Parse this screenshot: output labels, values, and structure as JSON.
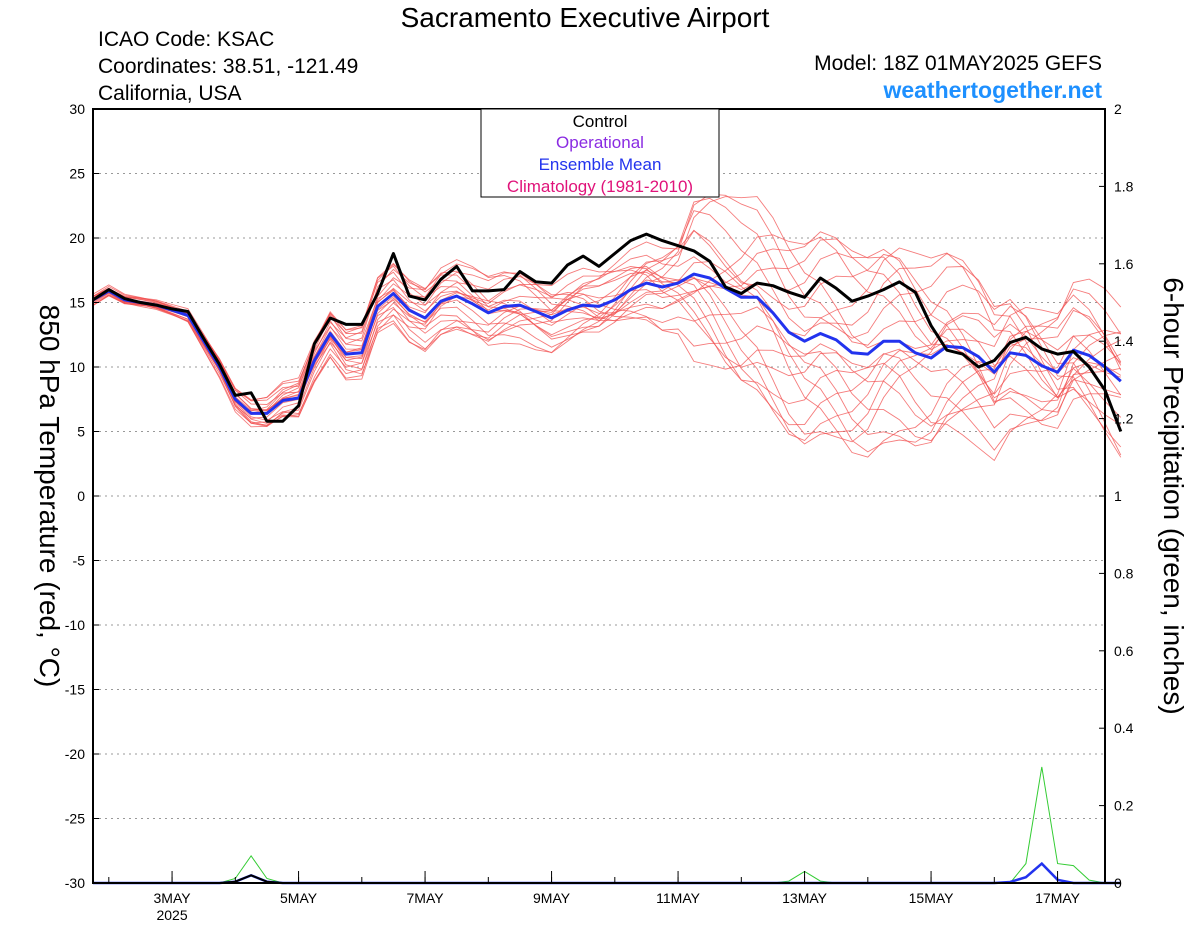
{
  "header": {
    "title": "Sacramento Executive Airport",
    "icao": "ICAO Code: KSAC",
    "coords": "Coordinates: 38.51, -121.49",
    "region": "California, USA",
    "model": "Model: 18Z 01MAY2025 GEFS",
    "site": "weathertogether.net"
  },
  "colors": {
    "control": "#000000",
    "operational": "#8a2be2",
    "mean": "#2233ee",
    "climatology": "#e0137a",
    "members": "#f25050",
    "precip": "#33cc33",
    "grid": "#999999"
  },
  "chart_data": {
    "type": "line",
    "ylabel_left": "850 hPa Temperature (red, °C)",
    "ylabel_right": "6-hour Precipitation (green, inches)",
    "ylim_left": [
      -30,
      30
    ],
    "ylim_right": [
      0,
      2
    ],
    "yticks_left": [
      30,
      25,
      20,
      15,
      10,
      5,
      0,
      -5,
      -10,
      -15,
      -20,
      -25,
      -30
    ],
    "yticks_right": [
      "2",
      "1.8",
      "1.6",
      "1.4",
      "1.2",
      "1",
      "0.8",
      "0.6",
      "0.4",
      "0.2",
      "0"
    ],
    "x_start_day": 1.75,
    "x_end_day": 17.75,
    "x_step_days": 0.25,
    "xticks": [
      {
        "label": "3MAY",
        "day": 3,
        "sub": "2025"
      },
      {
        "label": "5MAY",
        "day": 5
      },
      {
        "label": "7MAY",
        "day": 7
      },
      {
        "label": "9MAY",
        "day": 9
      },
      {
        "label": "11MAY",
        "day": 11
      },
      {
        "label": "13MAY",
        "day": 13
      },
      {
        "label": "15MAY",
        "day": 15
      },
      {
        "label": "17MAY",
        "day": 17
      }
    ],
    "grid": "horizontal dotted",
    "legend": {
      "position": "top-center",
      "entries": [
        "Control",
        "Operational",
        "Ensemble Mean",
        "Climatology (1981-2010)"
      ]
    },
    "series": [
      {
        "name": "Control",
        "values": [
          15.2,
          16,
          15.3,
          15,
          14.8,
          14.5,
          14.3,
          12.2,
          10.2,
          7.8,
          8,
          5.8,
          5.8,
          7,
          11.8,
          13.8,
          13.3,
          13.3,
          15.7,
          18.8,
          15.5,
          15.2,
          16.8,
          17.8,
          15.9,
          15.9,
          16,
          17.4,
          16.6,
          16.5,
          17.9,
          18.6,
          17.8,
          18.8,
          19.8,
          20.3,
          19.8,
          19.4,
          19,
          18.2,
          16.2,
          15.7,
          16.5,
          16.3,
          15.8,
          15.4,
          16.9,
          16.1,
          15.1,
          15.5,
          16,
          16.6,
          15.8,
          13.2,
          11.3,
          11,
          10,
          10.5,
          11.9,
          12.3,
          11.4,
          11,
          11.2,
          10,
          8.2,
          5
        ]
      },
      {
        "name": "Ensemble Mean",
        "values": [
          15.2,
          15.9,
          15.2,
          15,
          14.8,
          14.4,
          14,
          12,
          10,
          7.5,
          6.4,
          6.4,
          7.4,
          7.6,
          10.5,
          12.6,
          11,
          11.1,
          14.7,
          15.7,
          14.4,
          13.8,
          15.1,
          15.5,
          14.9,
          14.2,
          14.7,
          14.8,
          14.3,
          13.8,
          14.4,
          14.8,
          14.7,
          15.2,
          16,
          16.5,
          16.2,
          16.5,
          17.2,
          16.9,
          16.1,
          15.4,
          15.4,
          14.2,
          12.7,
          12,
          12.6,
          12.1,
          11.1,
          11,
          12,
          12,
          11.1,
          10.7,
          11.6,
          11.5,
          10.8,
          9.6,
          11.1,
          10.9,
          10.1,
          9.6,
          11.3,
          10.9,
          10,
          8.9
        ]
      }
    ],
    "members_note": "thin red GEFS member traces",
    "precipitation": {
      "unit": "inches",
      "control": {
        "day": 4.25,
        "peak": 0.02
      },
      "mean": [
        {
          "day": 4.25,
          "peak": 0.02
        },
        {
          "day": 16.5,
          "peak": 0.015
        },
        {
          "day": 16.75,
          "peak": 0.05
        }
      ],
      "members": [
        {
          "day": 4.25,
          "peak": 0.07
        },
        {
          "day": 13,
          "peak": 0.03
        },
        {
          "day": 16.75,
          "peak": 0.3
        },
        {
          "day": 17.25,
          "peak": 0.045
        }
      ]
    }
  }
}
